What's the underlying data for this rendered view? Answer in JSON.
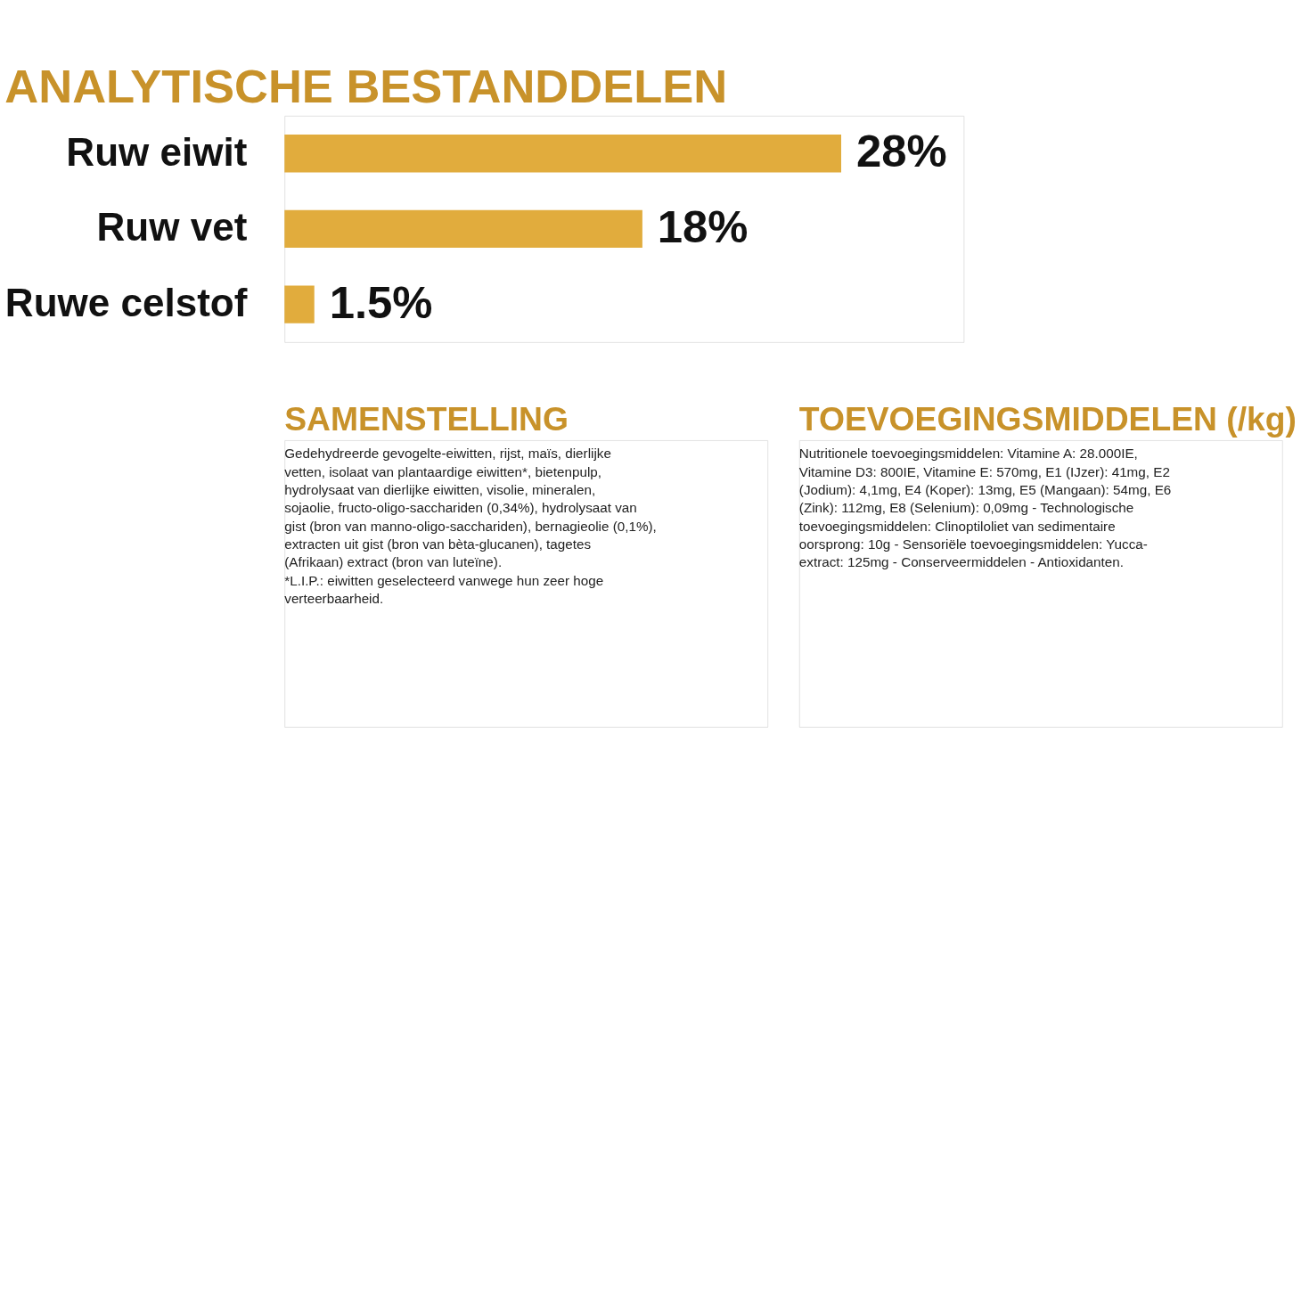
{
  "chart_data": [
    {
      "type": "bar",
      "title": "ANALYTISCHE BESTANDDELEN",
      "orientation": "horizontal",
      "color": "#e1ac3d",
      "categories": [
        "Ruw eiwit",
        "Ruw vet",
        "Ruwe celstof"
      ],
      "values": [
        28,
        18,
        1.5
      ],
      "value_labels": [
        "28%",
        "18%",
        "1.5%"
      ]
    },
    {
      "type": "other",
      "title": "SAMENSTELLING",
      "annotations": [
        "Gedehydreerde gevogelte-eiwitten, rijst, maïs, dierlijke vetten, isolaat van plantaardige eiwitten*, bietenpulp, hydrolysaat van dierlijke eiwitten, visolie, mineralen, sojaolie, fructo-oligo-sacchariden (0,34%), hydrolysaat van gist (bron van manno-oligo-sacchariden), bernagieolie (0,1%), extracten uit gist (bron van bèta-glucanen), tagetes (Afrikaan) extract (bron van luteïne).",
        "*L.I.P.: eiwitten geselecteerd vanwege hun zeer hoge verteerbaarheid."
      ]
    },
    {
      "type": "other",
      "title": "TOEVOEGINGSMIDDELEN (/kg)",
      "annotations": [
        "Nutritionele toevoegingsmiddelen: Vitamine A: 28.000IE, Vitamine D3: 800IE, Vitamine E: 570mg, E1 (IJzer): 41mg, E2 (Jodium): 4,1mg, E4 (Koper): 13mg, E5 (Mangaan): 54mg, E6 (Zink): 112mg, E8 (Selenium): 0,09mg - Technologische toevoegingsmiddelen: Clinoptiloliet van sedimentaire oorsprong: 10g - Sensoriële toevoegingsmiddelen: Yucca-extract: 125mg - Conserveermiddelen - Antioxidanten."
      ]
    }
  ]
}
